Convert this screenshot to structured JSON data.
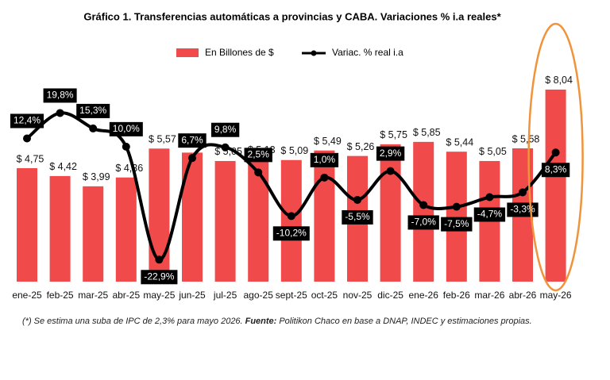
{
  "chart_data": {
    "type": "bar-line",
    "title": "Gráfico 1. Transferencias automáticas a provincias y CABA. Variaciones % i.a reales*",
    "categories": [
      "ene-25",
      "feb-25",
      "mar-25",
      "abr-25",
      "may-25",
      "jun-25",
      "jul-25",
      "ago-25",
      "sept-25",
      "oct-25",
      "nov-25",
      "dic-25",
      "ene-26",
      "feb-26",
      "mar-26",
      "abr-26",
      "may-26"
    ],
    "series": [
      {
        "name": "En Billones de $",
        "color": "#f04a4a",
        "type": "bar",
        "values": [
          4.75,
          4.42,
          3.99,
          4.36,
          5.57,
          5.4,
          5.05,
          5.13,
          5.09,
          5.49,
          5.26,
          5.75,
          5.85,
          5.44,
          5.05,
          5.58,
          8.04
        ],
        "value_labels": [
          "$ 4,75",
          "$ 4,42",
          "$ 3,99",
          "$ 4,36",
          "$ 5,57",
          null,
          "$ 5,05",
          "$ 5,13",
          "$ 5,09",
          "$ 5,49",
          "$ 5,26",
          "$ 5,75",
          "$ 5,85",
          "$ 5,44",
          "$ 5,05",
          "$ 5,58",
          "$ 8,04"
        ]
      },
      {
        "name": "Variac. % real i.a",
        "color": "#000000",
        "type": "line",
        "axis": "y2",
        "values": [
          12.4,
          19.8,
          15.3,
          10.0,
          -22.9,
          6.7,
          9.8,
          2.5,
          -10.2,
          1.0,
          -5.5,
          2.9,
          -7.0,
          -7.5,
          -4.7,
          -3.3,
          8.3
        ],
        "value_labels": [
          "12,4%",
          "19,8%",
          "15,3%",
          "10,0%",
          "-22,9%",
          "6,7%",
          "9,8%",
          "2,5%",
          "-10,2%",
          "1,0%",
          "-5,5%",
          "2,9%",
          "-7,0%",
          "-7,5%",
          "-4,7%",
          "-3,3%",
          "8,3%"
        ]
      }
    ],
    "ylim": [
      0,
      9
    ],
    "y2lim": [
      -29.3,
      33.3
    ],
    "highlight_color": "#f0933a",
    "note": {
      "text": "(*) Se estima una suba de IPC de 2,3% para mayo 2026.",
      "source_label": "Fuente:",
      "source_text": "Politikon Chaco en base a DNAP, INDEC y estimaciones propias."
    }
  }
}
